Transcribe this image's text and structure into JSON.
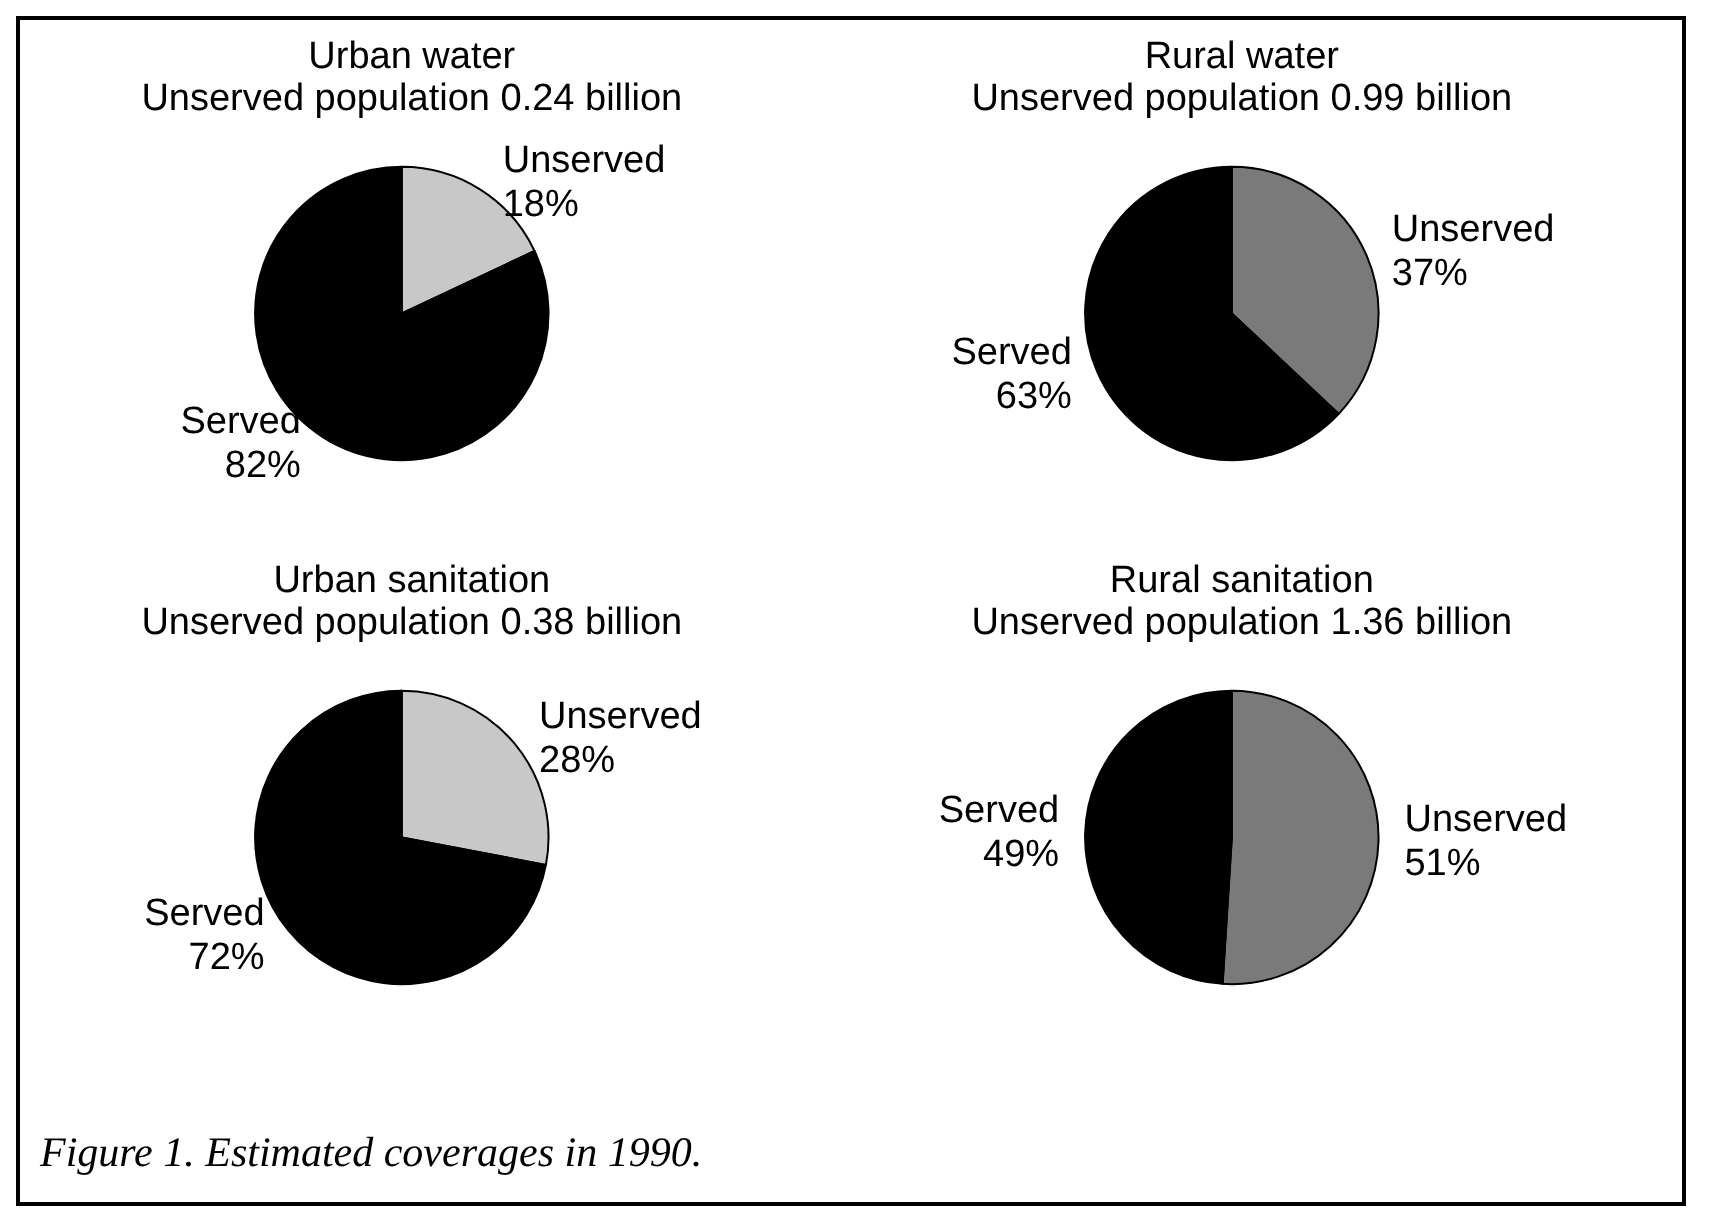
{
  "chart_data": [
    {
      "type": "pie",
      "title": "Urban water",
      "subtitle": "Unserved population 0.24 billion",
      "categories": [
        "Unserved",
        "Served"
      ],
      "values": [
        18,
        82
      ],
      "value_labels": [
        "18%",
        "82%"
      ],
      "colors": [
        "#c8c8c8",
        "#000000"
      ],
      "legend": false
    },
    {
      "type": "pie",
      "title": "Rural water",
      "subtitle": "Unserved population 0.99 billion",
      "categories": [
        "Unserved",
        "Served"
      ],
      "values": [
        37,
        63
      ],
      "value_labels": [
        "37%",
        "63%"
      ],
      "colors": [
        "#7a7a7a",
        "#000000"
      ],
      "legend": false
    },
    {
      "type": "pie",
      "title": "Urban sanitation",
      "subtitle": "Unserved population 0.38 billion",
      "categories": [
        "Unserved",
        "Served"
      ],
      "values": [
        28,
        72
      ],
      "value_labels": [
        "28%",
        "72%"
      ],
      "colors": [
        "#c8c8c8",
        "#000000"
      ],
      "legend": false
    },
    {
      "type": "pie",
      "title": "Rural sanitation",
      "subtitle": "Unserved population 1.36 billion",
      "categories": [
        "Unserved",
        "Served"
      ],
      "values": [
        51,
        49
      ],
      "value_labels": [
        "51%",
        "49%"
      ],
      "colors": [
        "#7a7a7a",
        "#000000"
      ],
      "legend": false,
      "annotations": [
        "Figure 1. Estimated coverages in 1990."
      ]
    }
  ]
}
